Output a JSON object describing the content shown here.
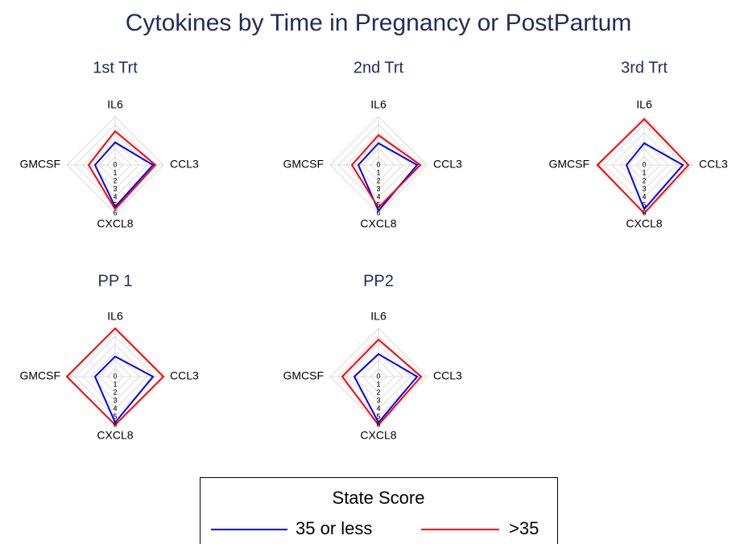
{
  "title": "Cytokines by Time in Pregnancy or PostPartum",
  "legend_title": "State Score",
  "chart_data": [
    {
      "type": "radar",
      "title": "1st Trt",
      "axes": [
        "IL6",
        "CCL3",
        "CXCL8",
        "GMCSF"
      ],
      "rlim": [
        0,
        6
      ],
      "rticks": [
        0,
        1,
        2,
        3,
        4,
        5,
        6
      ],
      "series": [
        {
          "name": "35 or less",
          "color": "#0000ff",
          "values": [
            2.8,
            4.7,
            5.2,
            2.5
          ]
        },
        {
          "name": ">35",
          "color": "#ff0000",
          "values": [
            4.2,
            5.0,
            5.5,
            3.3
          ]
        }
      ]
    },
    {
      "type": "radar",
      "title": "2nd Trt",
      "axes": [
        "IL6",
        "CCL3",
        "CXCL8",
        "GMCSF"
      ],
      "rlim": [
        0,
        6
      ],
      "rticks": [
        0,
        1,
        2,
        3,
        4,
        5,
        6
      ],
      "series": [
        {
          "name": "35 or less",
          "color": "#0000ff",
          "values": [
            2.7,
            4.8,
            5.7,
            2.5
          ]
        },
        {
          "name": ">35",
          "color": "#ff0000",
          "values": [
            3.7,
            5.2,
            5.3,
            3.3
          ]
        }
      ]
    },
    {
      "type": "radar",
      "title": "3rd Trt",
      "axes": [
        "IL6",
        "CCL3",
        "CXCL8",
        "GMCSF"
      ],
      "rlim": [
        0,
        6
      ],
      "rticks": [
        0,
        1,
        2,
        3,
        4,
        5,
        6
      ],
      "series": [
        {
          "name": "35 or less",
          "color": "#0000ff",
          "values": [
            2.7,
            4.8,
            5.5,
            2.2
          ]
        },
        {
          "name": ">35",
          "color": "#ff0000",
          "values": [
            5.7,
            5.5,
            6.0,
            5.8
          ]
        }
      ]
    },
    {
      "type": "radar",
      "title": "PP 1",
      "axes": [
        "IL6",
        "CCL3",
        "CXCL8",
        "GMCSF"
      ],
      "rlim": [
        0,
        6
      ],
      "rticks": [
        0,
        1,
        2,
        3,
        4,
        5,
        6
      ],
      "series": [
        {
          "name": "35 or less",
          "color": "#0000ff",
          "values": [
            2.5,
            4.7,
            5.7,
            2.5
          ]
        },
        {
          "name": ">35",
          "color": "#ff0000",
          "values": [
            6.0,
            6.0,
            6.0,
            6.0
          ]
        }
      ]
    },
    {
      "type": "radar",
      "title": "PP2",
      "axes": [
        "IL6",
        "CCL3",
        "CXCL8",
        "GMCSF"
      ],
      "rlim": [
        0,
        6
      ],
      "rticks": [
        0,
        1,
        2,
        3,
        4,
        5,
        6
      ],
      "series": [
        {
          "name": "35 or less",
          "color": "#0000ff",
          "values": [
            2.8,
            4.8,
            5.7,
            3.0
          ]
        },
        {
          "name": ">35",
          "color": "#ff0000",
          "values": [
            4.6,
            5.3,
            6.0,
            4.5
          ]
        }
      ]
    }
  ]
}
